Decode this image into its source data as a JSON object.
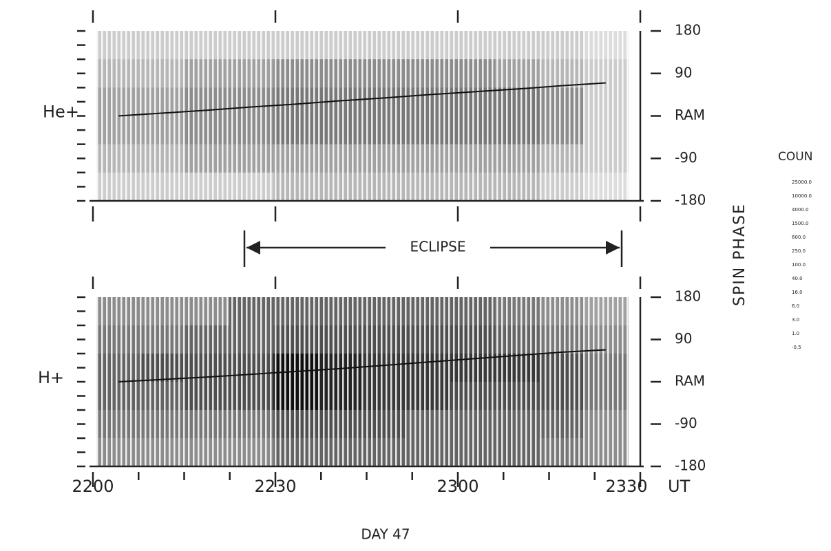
{
  "chart_data": [
    {
      "type": "heatmap",
      "label": "He+",
      "ylim": [
        -180,
        180
      ],
      "yticks": [
        180,
        90,
        {
          "value": 0,
          "label": "RAM"
        },
        -90,
        -180
      ],
      "counts": [
        [
          6,
          6,
          6,
          6,
          6,
          6,
          6,
          6,
          6,
          6,
          6,
          3
        ],
        [
          16,
          16,
          40,
          40,
          100,
          100,
          100,
          100,
          100,
          40,
          16,
          6
        ],
        [
          40,
          40,
          100,
          100,
          250,
          250,
          250,
          250,
          250,
          250,
          100,
          6
        ],
        [
          40,
          40,
          100,
          100,
          250,
          250,
          250,
          250,
          250,
          250,
          100,
          6
        ],
        [
          16,
          16,
          40,
          40,
          40,
          40,
          40,
          40,
          40,
          40,
          16,
          6
        ],
        [
          6,
          6,
          6,
          6,
          16,
          16,
          16,
          16,
          16,
          16,
          6,
          3
        ]
      ],
      "ram_phase": [
        0,
        6,
        12,
        19,
        25,
        32,
        38,
        45,
        51,
        57,
        64,
        70
      ]
    },
    {
      "type": "heatmap",
      "label": "H+",
      "ylim": [
        -180,
        180
      ],
      "yticks": [
        180,
        90,
        {
          "value": 0,
          "label": "RAM"
        },
        -90,
        -180
      ],
      "counts": [
        [
          100,
          100,
          100,
          600,
          600,
          600,
          600,
          600,
          600,
          250,
          100,
          40
        ],
        [
          250,
          250,
          600,
          600,
          1500,
          1500,
          1500,
          1500,
          1500,
          600,
          250,
          100
        ],
        [
          600,
          1500,
          1500,
          1500,
          25000,
          10000,
          4000,
          4000,
          4000,
          4000,
          1500,
          250
        ],
        [
          600,
          600,
          1500,
          1500,
          25000,
          10000,
          4000,
          4000,
          1500,
          1500,
          1500,
          250
        ],
        [
          250,
          250,
          250,
          250,
          1500,
          1500,
          1500,
          600,
          600,
          600,
          600,
          100
        ],
        [
          100,
          100,
          100,
          100,
          600,
          600,
          600,
          600,
          600,
          600,
          250,
          100
        ]
      ],
      "ram_phase": [
        0,
        5,
        10,
        16,
        22,
        28,
        35,
        42,
        49,
        56,
        63,
        68
      ]
    }
  ],
  "x_axis": {
    "ticks": [
      "2200",
      "2230",
      "2300",
      "2330"
    ],
    "unit": "UT",
    "label": "DAY 47"
  },
  "y_axis_label": "SPIN PHASE",
  "eclipse": "ECLIPSE",
  "colorbar": {
    "title": "COUN",
    "levels": [
      {
        "value": 25000,
        "label": "25000.0"
      },
      {
        "value": 10000,
        "label": "10000.0"
      },
      {
        "value": 4000,
        "label": "4000.0"
      },
      {
        "value": 1500,
        "label": "1500.0"
      },
      {
        "value": 600,
        "label": "600.0"
      },
      {
        "value": 250,
        "label": "250.0"
      },
      {
        "value": 100,
        "label": "100.0"
      },
      {
        "value": 40,
        "label": "40.0"
      },
      {
        "value": 16,
        "label": "16.0"
      },
      {
        "value": 6,
        "label": "6.0"
      },
      {
        "value": 3,
        "label": "3.0"
      },
      {
        "value": 1,
        "label": "1.0"
      },
      {
        "value": -0.5,
        "label": "-0.5"
      }
    ]
  }
}
